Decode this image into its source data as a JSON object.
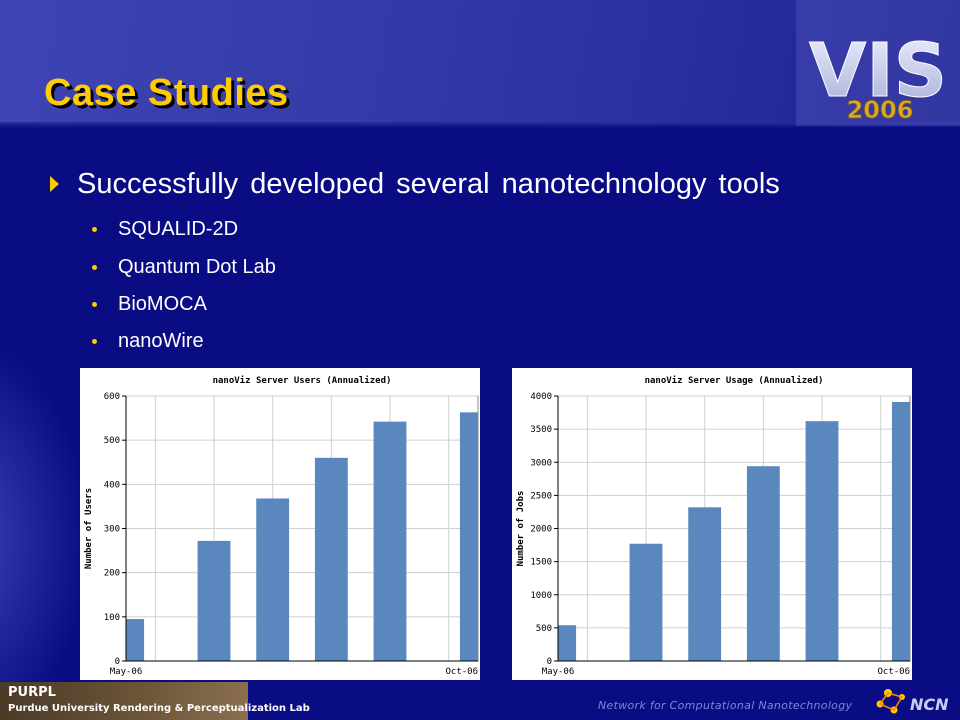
{
  "slide": {
    "title": "Case Studies",
    "logo_vis_text": "VIS",
    "logo_year": "2006",
    "bullet": "Successfully developed several nanotechnology tools",
    "sub_items": [
      "SQUALID-2D",
      "Quantum Dot Lab",
      "BioMOCA",
      "nanoWire"
    ],
    "footer": "Network for Computational Nanotechnology",
    "purpl_name": "PURPL",
    "purpl_full": "Purdue University Rendering & Perceptualization Lab",
    "ncn_logo_text": "NCN",
    "colors": {
      "background": "#0a0c84",
      "title": "#ffcc00",
      "bar": "#5a87bd",
      "accent": "#ffcc00"
    }
  },
  "chart_data": [
    {
      "type": "bar",
      "title": "nanoViz Server Users (Annualized)",
      "xlabel": "",
      "ylabel": "Number of Users",
      "categories": [
        "May-06",
        "",
        "",
        "",
        "",
        "Oct-06"
      ],
      "values": [
        95,
        272,
        368,
        460,
        542,
        563
      ],
      "ylim": [
        0,
        600
      ],
      "yticks": [
        0,
        100,
        200,
        300,
        400,
        500,
        600
      ],
      "xticks": [
        "May-06",
        "Oct-06"
      ],
      "grid": true
    },
    {
      "type": "bar",
      "title": "nanoViz Server Usage (Annualized)",
      "xlabel": "",
      "ylabel": "Number of Jobs",
      "categories": [
        "May-06",
        "",
        "",
        "",
        "",
        "Oct-06"
      ],
      "values": [
        540,
        1770,
        2320,
        2940,
        3620,
        3910
      ],
      "ylim": [
        0,
        4000
      ],
      "yticks": [
        0,
        500,
        1000,
        1500,
        2000,
        2500,
        3000,
        3500,
        4000
      ],
      "xticks": [
        "May-06",
        "Oct-06"
      ],
      "grid": true
    }
  ]
}
